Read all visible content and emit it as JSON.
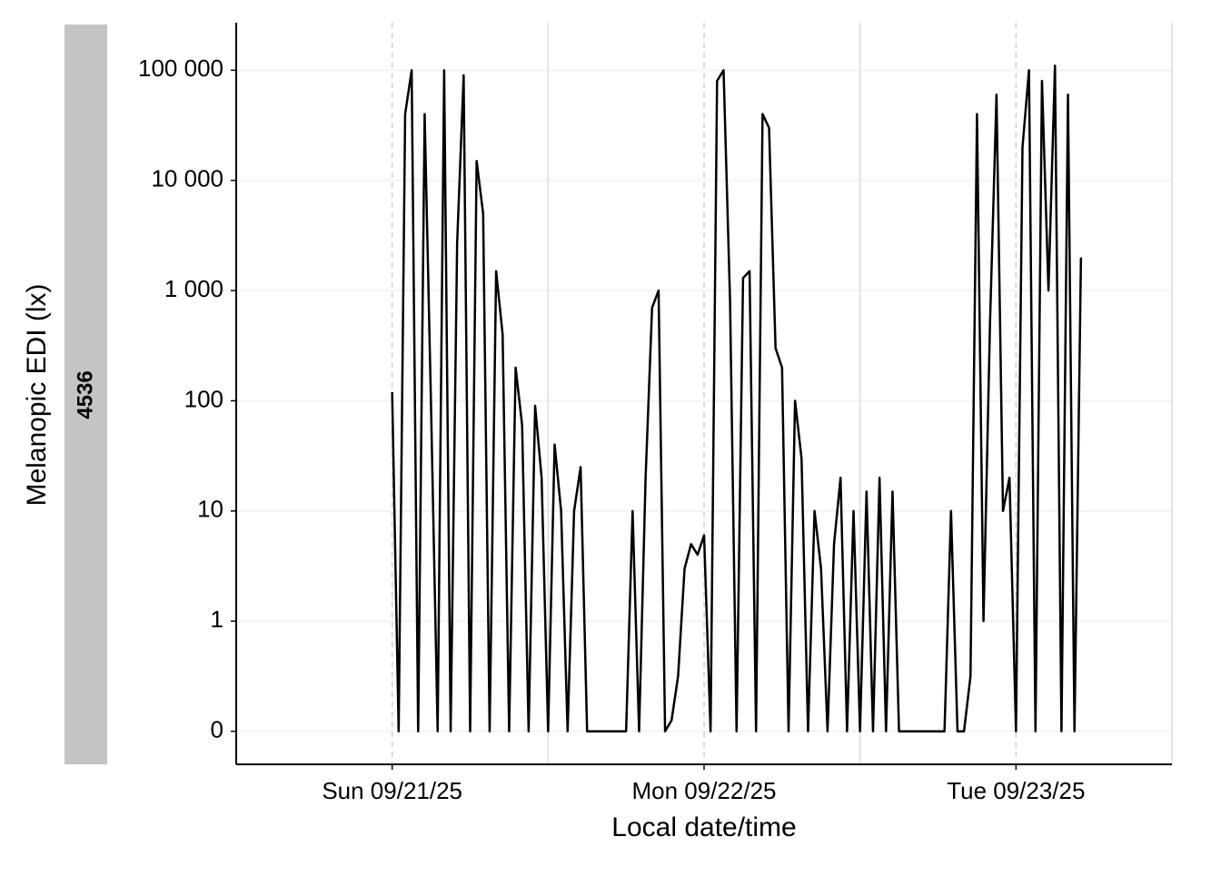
{
  "chart_data": {
    "type": "line",
    "facet_label": "4536",
    "xlabel": "Local date/time",
    "ylabel": "Melanopic EDI (lx)",
    "yscale": "symlog",
    "color": "#000000",
    "grid": true,
    "xlim": [
      "2025-09-20T12:00",
      "2025-09-23T12:00"
    ],
    "xticks": [
      {
        "value": "2025-09-21T00:00",
        "label": "Sun 09/21/25"
      },
      {
        "value": "2025-09-22T00:00",
        "label": "Mon 09/22/25"
      },
      {
        "value": "2025-09-23T00:00",
        "label": "Tue 09/23/25"
      }
    ],
    "x_minor_grid": [
      "2025-09-21T12:00",
      "2025-09-22T12:00",
      "2025-09-23T12:00"
    ],
    "ylim": [
      -0.3,
      270000
    ],
    "yticks": [
      0,
      1,
      10,
      100,
      {
        "value": 1000,
        "label": "1 000"
      },
      {
        "value": 10000,
        "label": "10 000"
      },
      {
        "value": 100000,
        "label": "100 000"
      }
    ],
    "x": [
      "2025-09-21T00:00",
      "2025-09-21T00:30",
      "2025-09-21T01:00",
      "2025-09-21T01:30",
      "2025-09-21T02:00",
      "2025-09-21T02:30",
      "2025-09-21T03:00",
      "2025-09-21T03:30",
      "2025-09-21T04:00",
      "2025-09-21T04:30",
      "2025-09-21T05:00",
      "2025-09-21T05:30",
      "2025-09-21T06:00",
      "2025-09-21T06:30",
      "2025-09-21T07:00",
      "2025-09-21T07:30",
      "2025-09-21T08:00",
      "2025-09-21T08:30",
      "2025-09-21T09:00",
      "2025-09-21T09:30",
      "2025-09-21T10:00",
      "2025-09-21T10:30",
      "2025-09-21T11:00",
      "2025-09-21T11:30",
      "2025-09-21T12:00",
      "2025-09-21T12:30",
      "2025-09-21T13:00",
      "2025-09-21T13:30",
      "2025-09-21T14:00",
      "2025-09-21T14:30",
      "2025-09-21T15:00",
      "2025-09-21T15:30",
      "2025-09-21T16:00",
      "2025-09-21T16:30",
      "2025-09-21T17:00",
      "2025-09-21T17:30",
      "2025-09-21T18:00",
      "2025-09-21T18:30",
      "2025-09-21T19:00",
      "2025-09-21T19:30",
      "2025-09-21T20:00",
      "2025-09-21T20:30",
      "2025-09-21T21:00",
      "2025-09-21T21:30",
      "2025-09-21T22:00",
      "2025-09-21T22:30",
      "2025-09-21T23:00",
      "2025-09-21T23:30",
      "2025-09-22T00:00",
      "2025-09-22T00:30",
      "2025-09-22T01:00",
      "2025-09-22T01:30",
      "2025-09-22T02:00",
      "2025-09-22T02:30",
      "2025-09-22T03:00",
      "2025-09-22T03:30",
      "2025-09-22T04:00",
      "2025-09-22T04:30",
      "2025-09-22T05:00",
      "2025-09-22T05:30",
      "2025-09-22T06:00",
      "2025-09-22T06:30",
      "2025-09-22T07:00",
      "2025-09-22T07:30",
      "2025-09-22T08:00",
      "2025-09-22T08:30",
      "2025-09-22T09:00",
      "2025-09-22T09:30",
      "2025-09-22T10:00",
      "2025-09-22T10:30",
      "2025-09-22T11:00",
      "2025-09-22T11:30",
      "2025-09-22T12:00",
      "2025-09-22T12:30",
      "2025-09-22T13:00",
      "2025-09-22T13:30",
      "2025-09-22T14:00",
      "2025-09-22T14:30",
      "2025-09-22T15:00",
      "2025-09-22T15:30",
      "2025-09-22T16:00",
      "2025-09-22T16:30",
      "2025-09-22T17:00",
      "2025-09-22T17:30",
      "2025-09-22T18:00",
      "2025-09-22T18:30",
      "2025-09-22T19:00",
      "2025-09-22T19:30",
      "2025-09-22T20:00",
      "2025-09-22T20:30",
      "2025-09-22T21:00",
      "2025-09-22T21:30",
      "2025-09-22T22:00",
      "2025-09-22T22:30",
      "2025-09-22T23:00",
      "2025-09-22T23:30",
      "2025-09-23T00:00",
      "2025-09-23T00:30",
      "2025-09-23T01:00",
      "2025-09-23T01:30",
      "2025-09-23T02:00",
      "2025-09-23T02:30",
      "2025-09-23T03:00",
      "2025-09-23T03:30",
      "2025-09-23T04:00",
      "2025-09-23T04:30",
      "2025-09-23T05:00"
    ],
    "values": [
      120,
      0,
      40000,
      100000,
      0,
      40000,
      80,
      0,
      100000,
      0,
      2700,
      90000,
      0,
      15000,
      5000,
      0,
      1500,
      400,
      0,
      200,
      60,
      0,
      90,
      20,
      0,
      40,
      10,
      0,
      10,
      25,
      0,
      0,
      0,
      0,
      0,
      0,
      0,
      10,
      0,
      20,
      700,
      1000,
      0,
      0.1,
      0.5,
      3,
      5,
      4,
      6,
      0,
      80000,
      100000,
      800,
      0,
      1300,
      1500,
      0,
      40000,
      30000,
      300,
      200,
      0,
      100,
      30,
      0,
      10,
      3,
      0,
      5,
      20,
      0,
      10,
      0,
      15,
      0,
      20,
      0,
      15,
      0,
      0,
      0,
      0,
      0,
      0,
      0,
      0,
      10,
      0,
      0,
      0.5,
      40000,
      1,
      500,
      60000,
      10,
      20,
      0,
      20000,
      100000,
      0,
      80000,
      1000,
      110000,
      0,
      60000,
      0,
      2000
    ]
  }
}
